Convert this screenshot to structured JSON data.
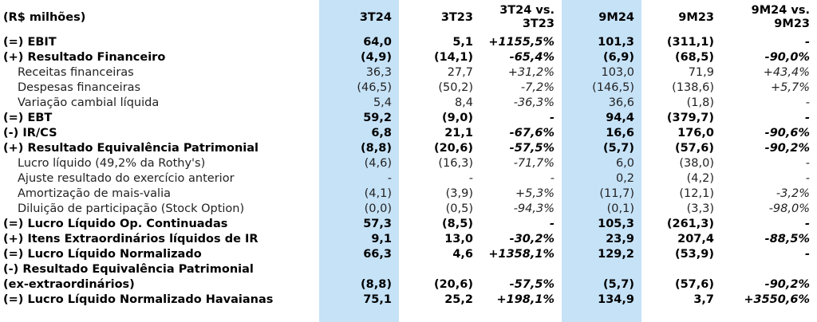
{
  "header": {
    "unit": "(R$ milhões)",
    "cols": [
      "3T24",
      "3T23",
      "3T24 vs.\n3T23",
      "9M24",
      "9M23",
      "9M24 vs.\n9M23"
    ]
  },
  "rows": [
    {
      "label": "(=) EBIT",
      "bold": true,
      "v": [
        "64,0",
        "5,1",
        "+1155,5%",
        "101,3",
        "(311,1)",
        "-"
      ]
    },
    {
      "label": "(+) Resultado Financeiro",
      "bold": true,
      "v": [
        "(4,9)",
        "(14,1)",
        "-65,4%",
        "(6,9)",
        "(68,5)",
        "-90,0%"
      ]
    },
    {
      "label": "Receitas financeiras",
      "bold": false,
      "v": [
        "36,3",
        "27,7",
        "+31,2%",
        "103,0",
        "71,9",
        "+43,4%"
      ]
    },
    {
      "label": "Despesas financeiras",
      "bold": false,
      "v": [
        "(46,5)",
        "(50,2)",
        "-7,2%",
        "(146,5)",
        "(138,6)",
        "+5,7%"
      ]
    },
    {
      "label": "Variação cambial líquida",
      "bold": false,
      "v": [
        "5,4",
        "8,4",
        "-36,3%",
        "36,6",
        "(1,8)",
        "-"
      ]
    },
    {
      "label": "(=) EBT",
      "bold": true,
      "v": [
        "59,2",
        "(9,0)",
        "-",
        "94,4",
        "(379,7)",
        "-"
      ]
    },
    {
      "label": "(-) IR/CS",
      "bold": true,
      "v": [
        "6,8",
        "21,1",
        "-67,6%",
        "16,6",
        "176,0",
        "-90,6%"
      ]
    },
    {
      "label": "(+) Resultado Equivalência Patrimonial",
      "bold": true,
      "v": [
        "(8,8)",
        "(20,6)",
        "-57,5%",
        "(5,7)",
        "(57,6)",
        "-90,2%"
      ]
    },
    {
      "label": "Lucro líquido (49,2% da Rothy's)",
      "bold": false,
      "v": [
        "(4,6)",
        "(16,3)",
        "-71,7%",
        "6,0",
        "(38,0)",
        "-"
      ]
    },
    {
      "label": "Ajuste resultado do exercício anterior",
      "bold": false,
      "v": [
        "-",
        "-",
        "-",
        "0,2",
        "(4,2)",
        "-"
      ]
    },
    {
      "label": "Amortização de mais-valia",
      "bold": false,
      "v": [
        "(4,1)",
        "(3,9)",
        "+5,3%",
        "(11,7)",
        "(12,1)",
        "-3,2%"
      ]
    },
    {
      "label": "Diluição de participação (Stock Option)",
      "bold": false,
      "v": [
        "(0,0)",
        "(0,5)",
        "-94,3%",
        "(0,1)",
        "(3,3)",
        "-98,0%"
      ]
    },
    {
      "label": "(=) Lucro Líquido Op. Continuadas",
      "bold": true,
      "v": [
        "57,3",
        "(8,5)",
        "-",
        "105,3",
        "(261,3)",
        "-"
      ]
    },
    {
      "label": "(+) Itens Extraordinários líquidos de IR",
      "bold": true,
      "v": [
        "9,1",
        "13,0",
        "-30,2%",
        "23,9",
        "207,4",
        "-88,5%"
      ]
    },
    {
      "label": "(=) Lucro Líquido Normalizado",
      "bold": true,
      "v": [
        "66,3",
        "4,6",
        "+1358,1%",
        "129,2",
        "(53,9)",
        "-"
      ]
    },
    {
      "label": "(-) Resultado Equivalência Patrimonial",
      "bold": true,
      "v": [
        "",
        "",
        "",
        "",
        "",
        ""
      ]
    },
    {
      "label": "(ex-extraordinários)",
      "bold": true,
      "v": [
        "(8,8)",
        "(20,6)",
        "-57,5%",
        "(5,7)",
        "(57,6)",
        "-90,2%"
      ]
    },
    {
      "label": "(=) Lucro Líquido Normalizado Havaianas",
      "bold": true,
      "v": [
        "75,1",
        "25,2",
        "+198,1%",
        "134,9",
        "3,7",
        "+3550,6%"
      ]
    }
  ]
}
